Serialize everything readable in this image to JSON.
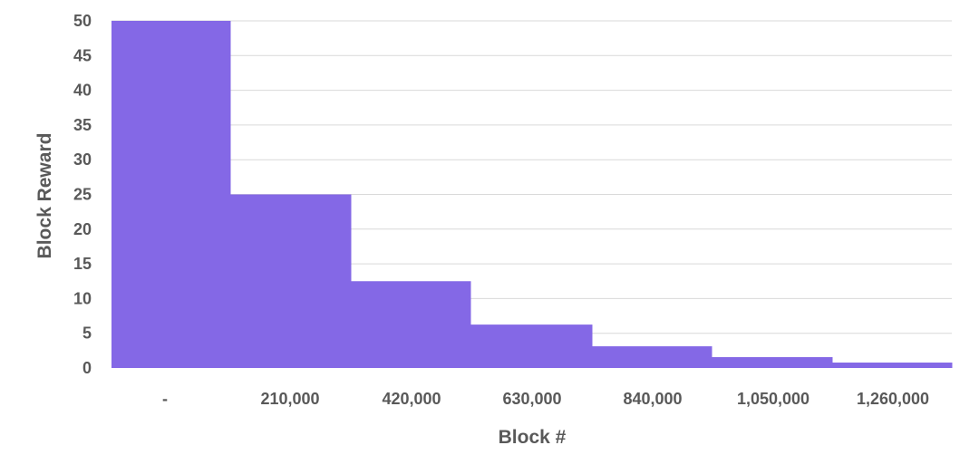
{
  "chart_data": {
    "type": "area",
    "xlabel": "Block #",
    "ylabel": "Block Reward",
    "x_tick_labels": [
      "-",
      "210,000",
      "420,000",
      "630,000",
      "840,000",
      "1,050,000",
      "1,260,000"
    ],
    "y_ticks": [
      0,
      5,
      10,
      15,
      20,
      25,
      30,
      35,
      40,
      45,
      50
    ],
    "ylim": [
      0,
      50
    ],
    "grid": true,
    "legend": "none",
    "steps": [
      {
        "x_start": "-",
        "x_end": "210,000",
        "value": 50
      },
      {
        "x_start": "210,000",
        "x_end": "420,000",
        "value": 25
      },
      {
        "x_start": "420,000",
        "x_end": "630,000",
        "value": 12.5
      },
      {
        "x_start": "630,000",
        "x_end": "840,000",
        "value": 6.25
      },
      {
        "x_start": "840,000",
        "x_end": "1,050,000",
        "value": 3.125
      },
      {
        "x_start": "1,050,000",
        "x_end": "1,260,000",
        "value": 1.5625
      },
      {
        "x_start": "1,260,000",
        "x_end": "end",
        "value": 0.78125
      }
    ],
    "colors": {
      "fill": "#8468e6",
      "grid": "#d9d9d9",
      "text": "#595959"
    }
  }
}
